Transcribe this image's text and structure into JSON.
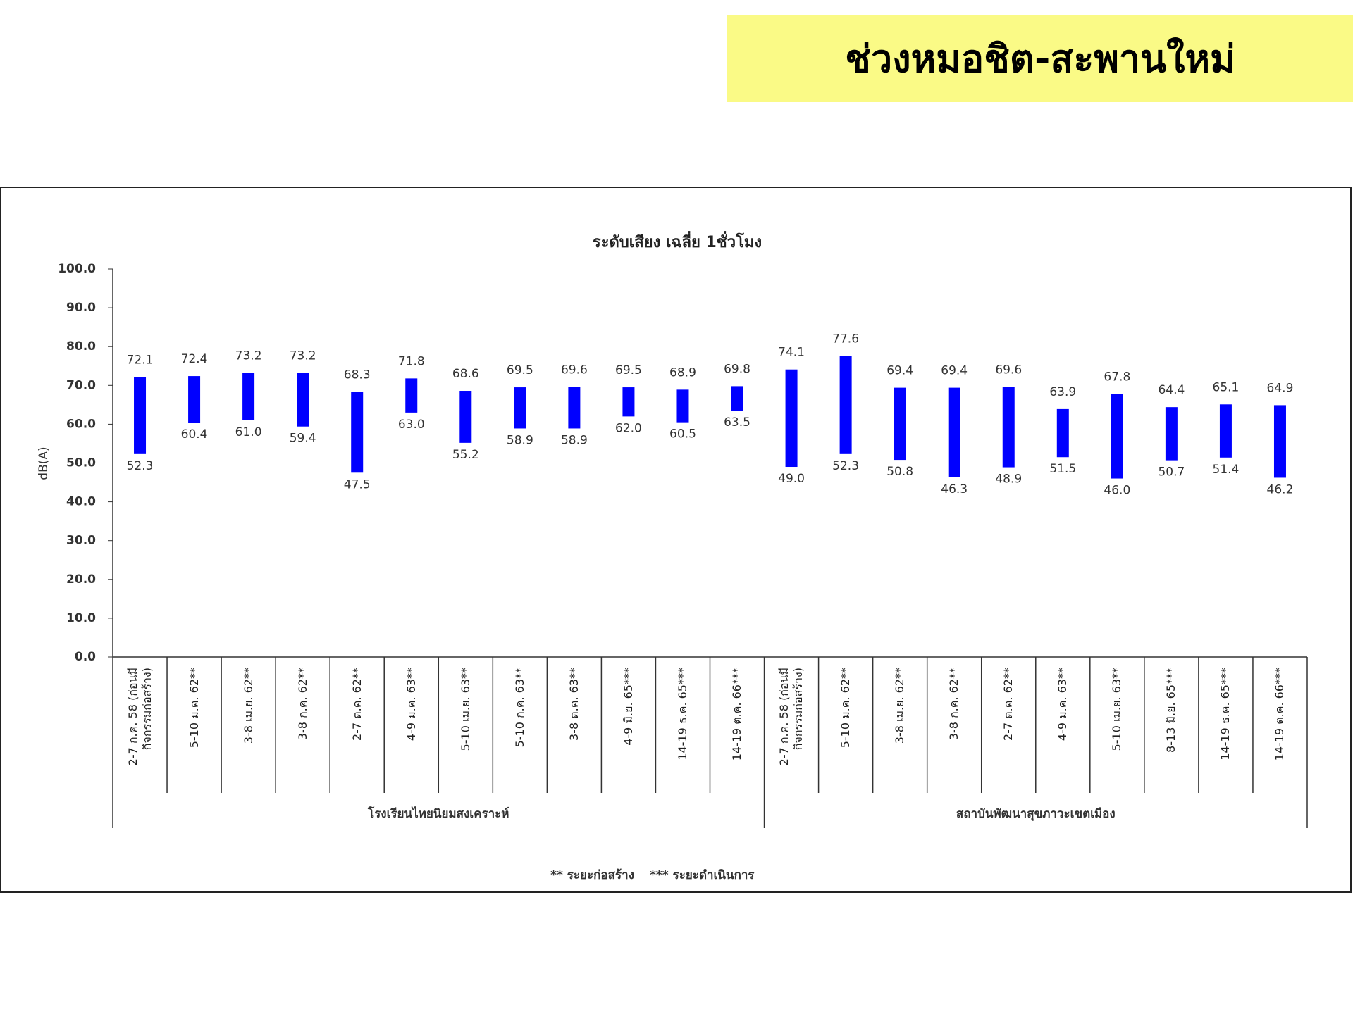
{
  "header": {
    "title": "ช่วงหมอชิต-สะพานใหม่"
  },
  "chart_data": {
    "type": "range_bar",
    "title": "ระดับเสียง เฉลี่ย 1ชั่วโมง",
    "y_label": "dB(A)",
    "groups": [
      {
        "name": "โรงเรียนไทยนิยมสงเคราะห์",
        "categories": [
          "2-7 ก.ค. 58 (ก่อนมีกิจกรรมก่อสร้าง)",
          "5-10 ม.ค. 62**",
          "3-8 เม.ย. 62**",
          "3-8 ก.ค. 62**",
          "2-7 ต.ค. 62**",
          "4-9 ม.ค. 63**",
          "5-10 เม.ย. 63**",
          "5-10 ก.ค. 63**",
          "3-8 ต.ค. 63**",
          "4-9 มิ.ย. 65***",
          "14-19 ธ.ค. 65***",
          "14-19 ต.ค. 66***"
        ]
      },
      {
        "name": "สถาบันพัฒนาสุขภาวะเขตเมือง",
        "categories": [
          "2-7 ก.ค. 58 (ก่อนมีกิจกรรมก่อสร้าง)",
          "5-10 ม.ค. 62**",
          "3-8 เม.ย. 62**",
          "3-8 ก.ค. 62**",
          "2-7 ต.ค. 62**",
          "4-9 ม.ค. 63**",
          "5-10 เม.ย. 63**",
          "8-13 มิ.ย. 65***",
          "14-19 ธ.ค. 65***",
          "14-19 ต.ค. 66***"
        ]
      }
    ],
    "color": "#0000ff",
    "low": {
      "values": [
        52.3,
        60.4,
        61.0,
        59.4,
        47.5,
        63.0,
        55.2,
        58.9,
        58.9,
        62.0,
        60.5,
        63.5,
        49.0,
        52.3,
        50.8,
        46.3,
        48.9,
        51.5,
        46.0,
        50.7,
        51.4,
        46.2
      ],
      "value_labels": [
        "52.3",
        "60.4",
        "61.0",
        "59.4",
        "47.5",
        "63.0",
        "55.2",
        "58.9",
        "58.9",
        "62.0",
        "60.5",
        "63.5",
        "49.0",
        "52.3",
        "50.8",
        "46.3",
        "48.9",
        "51.5",
        "46.0",
        "50.7",
        "51.4",
        "46.2"
      ]
    },
    "high": {
      "values": [
        72.1,
        72.4,
        73.2,
        73.2,
        68.3,
        71.8,
        68.6,
        69.5,
        69.6,
        69.5,
        68.9,
        69.8,
        74.1,
        77.6,
        69.4,
        69.4,
        69.6,
        63.9,
        67.8,
        64.4,
        65.1,
        64.9
      ],
      "value_labels": [
        "72.1",
        "72.4",
        "73.2",
        "73.2",
        "68.3",
        "71.8",
        "68.6",
        "69.5",
        "69.6",
        "69.5",
        "68.9",
        "69.8",
        "74.1",
        "77.6",
        "69.4",
        "69.4",
        "69.6",
        "63.9",
        "67.8",
        "64.4",
        "65.1",
        "64.9"
      ]
    },
    "ylim": [
      0,
      100
    ],
    "yticks": [
      {
        "value": 0,
        "label": "0.0"
      },
      {
        "value": 10,
        "label": "10.0"
      },
      {
        "value": 20,
        "label": "20.0"
      },
      {
        "value": 30,
        "label": "30.0"
      },
      {
        "value": 40,
        "label": "40.0"
      },
      {
        "value": 50,
        "label": "50.0"
      },
      {
        "value": 60,
        "label": "60.0"
      },
      {
        "value": 70,
        "label": "70.0"
      },
      {
        "value": 80,
        "label": "80.0"
      },
      {
        "value": 90,
        "label": "90.0"
      },
      {
        "value": 100,
        "label": "100.0"
      }
    ],
    "footnotes": [
      "** ระยะก่อสร้าง",
      "*** ระยะดำเนินการ"
    ]
  }
}
